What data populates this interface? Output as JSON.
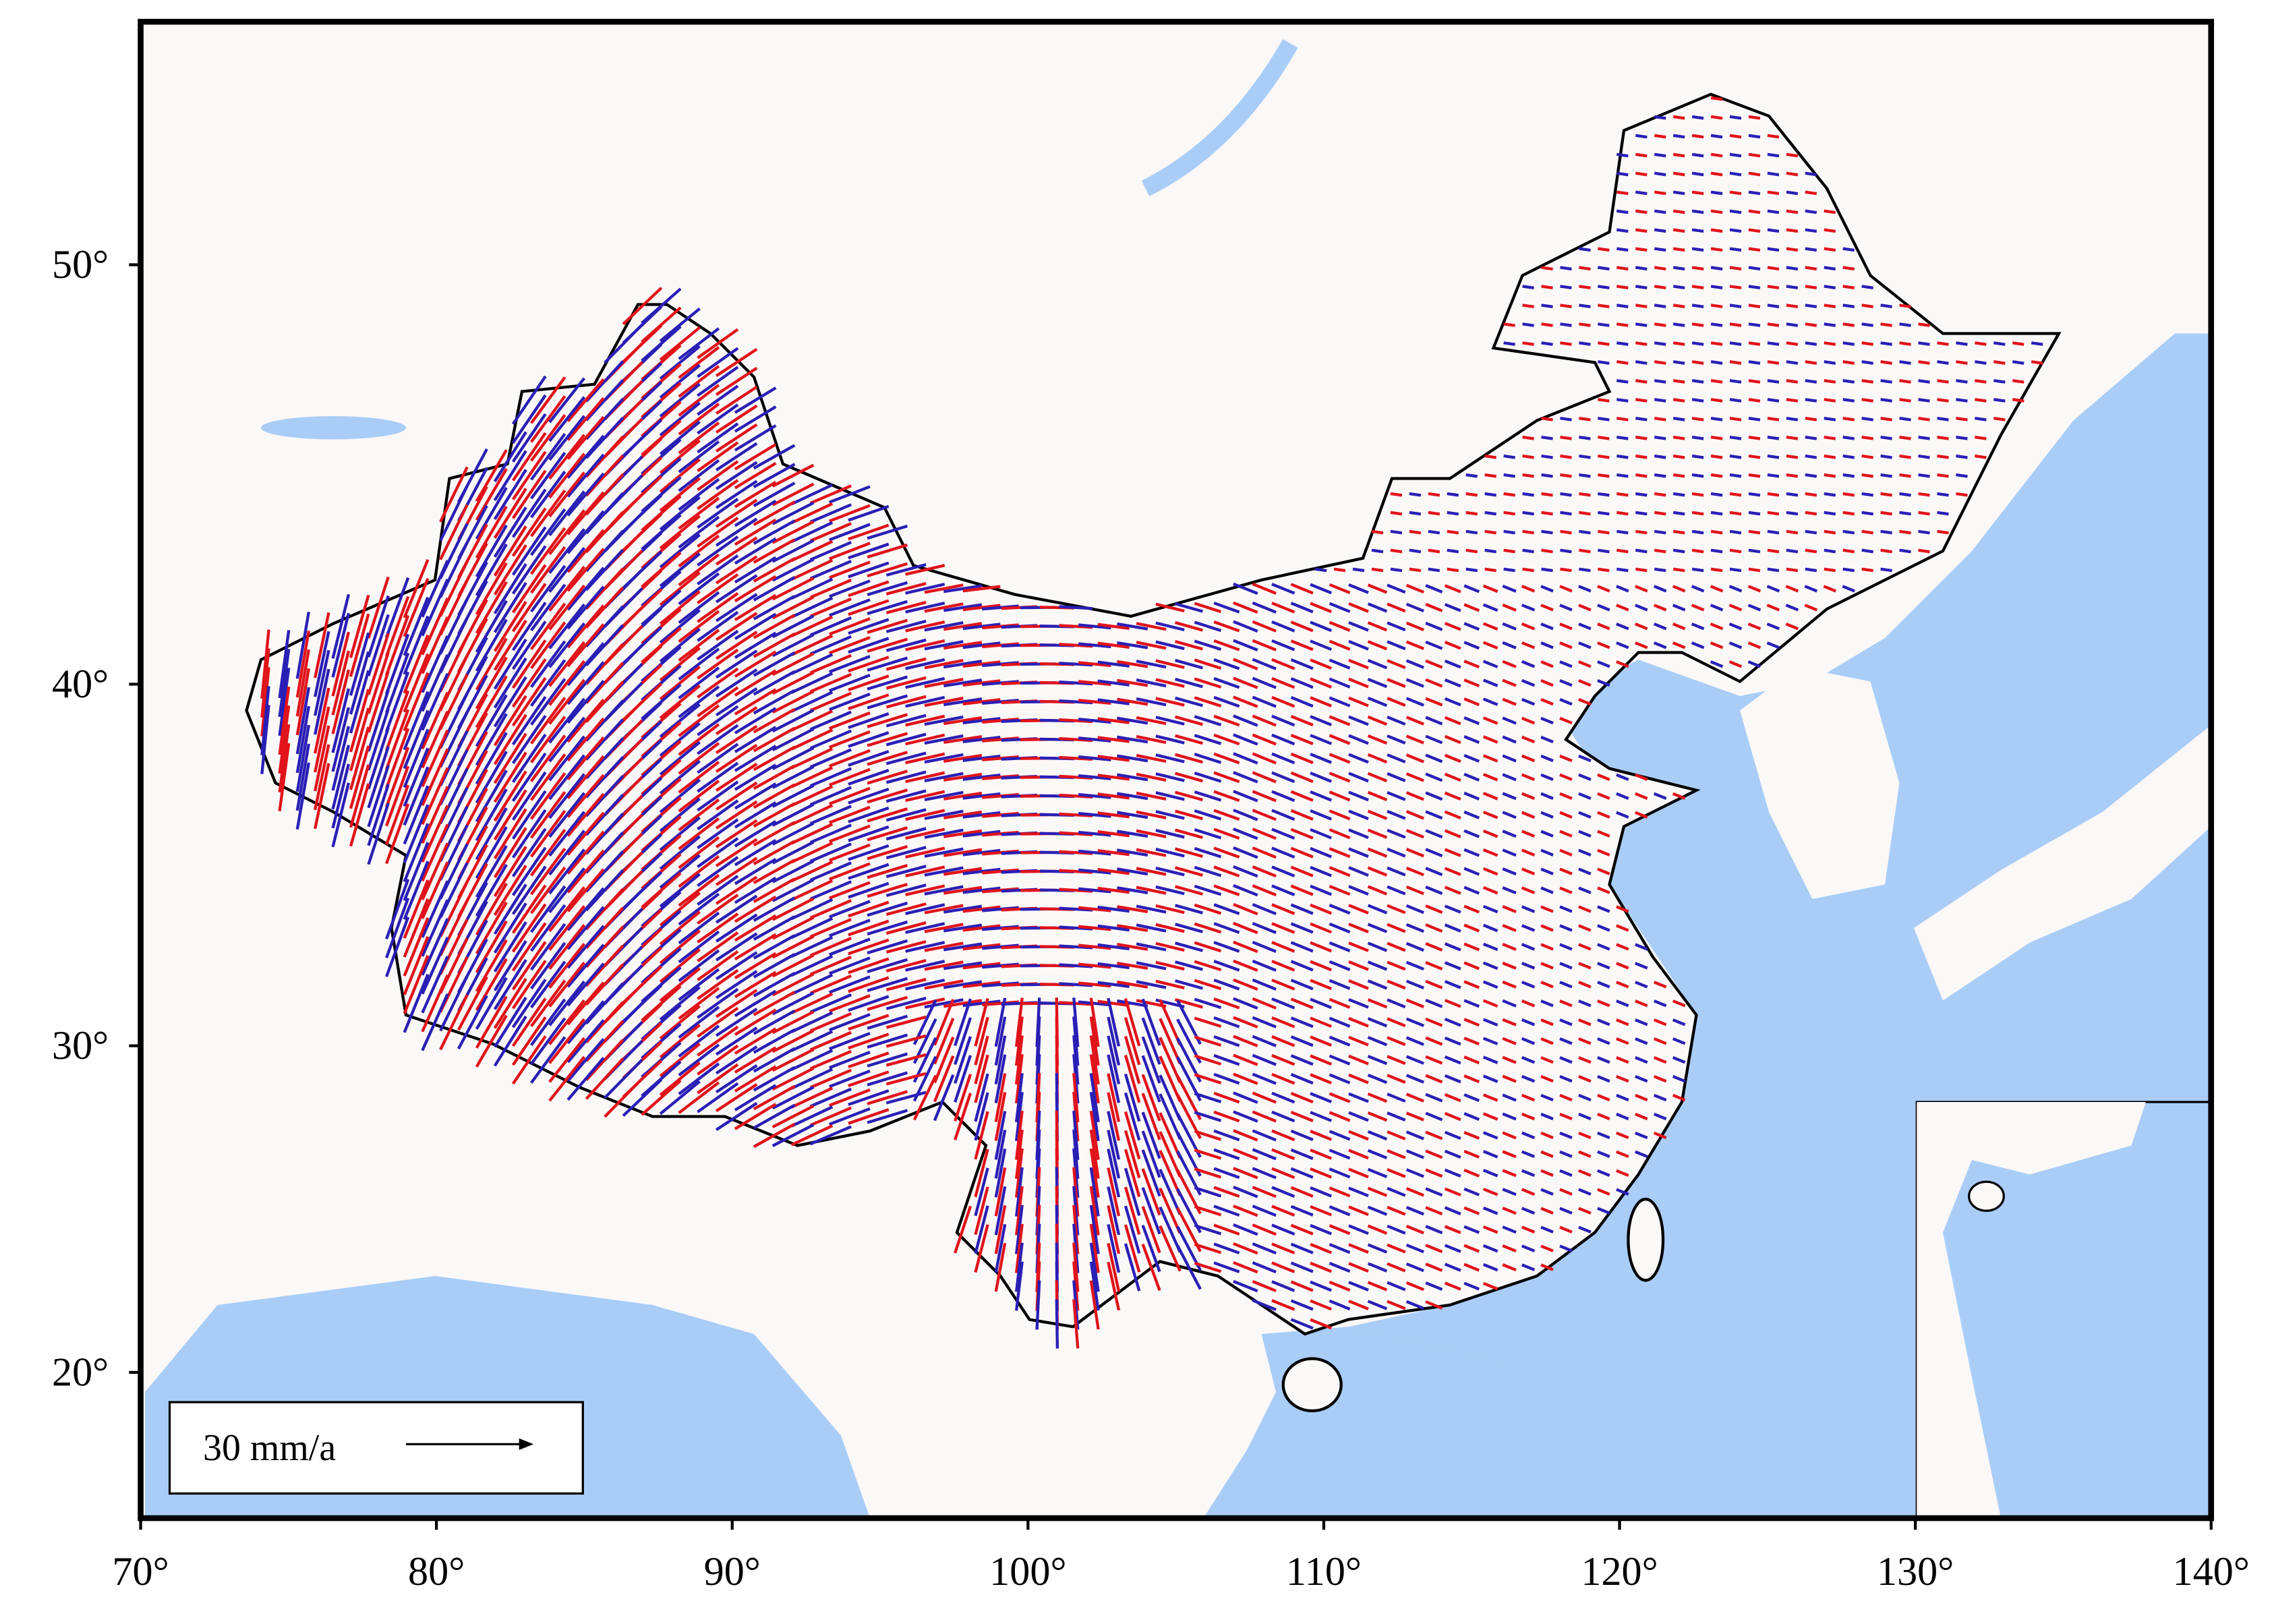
{
  "map": {
    "lon_ticks": [
      {
        "value": 70,
        "label": "70°"
      },
      {
        "value": 80,
        "label": "80°"
      },
      {
        "value": 90,
        "label": "90°"
      },
      {
        "value": 100,
        "label": "100°"
      },
      {
        "value": 110,
        "label": "110°"
      },
      {
        "value": 120,
        "label": "120°"
      },
      {
        "value": 130,
        "label": "130°"
      },
      {
        "value": 140,
        "label": "140°"
      }
    ],
    "lat_ticks": [
      {
        "value": 20,
        "label": "20°"
      },
      {
        "value": 30,
        "label": "30°"
      },
      {
        "value": 40,
        "label": "40°"
      },
      {
        "value": 50,
        "label": "50°"
      }
    ],
    "lat_range": [
      15.3,
      55.0
    ],
    "legend": {
      "label": "30 mm/a"
    }
  }
}
